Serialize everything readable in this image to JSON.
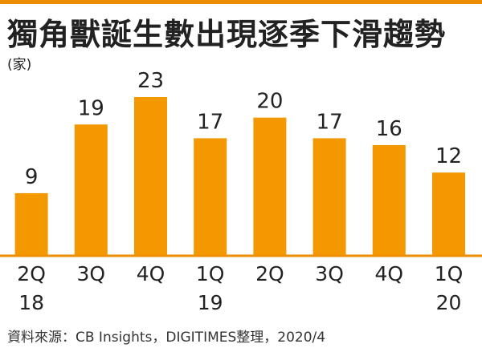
{
  "title": "獨角獸誕生數出現逐季下滑趨勢",
  "unit": "(家)",
  "source": "資料來源：CB Insights，DIGITIMES整理，2020/4",
  "colors": {
    "accent": "#ee8c00",
    "bar": "#f39800",
    "text": "#222222"
  },
  "chart_data": {
    "type": "bar",
    "categories": [
      {
        "q": "2Q",
        "year": "18"
      },
      {
        "q": "3Q",
        "year": ""
      },
      {
        "q": "4Q",
        "year": ""
      },
      {
        "q": "1Q",
        "year": "19"
      },
      {
        "q": "2Q",
        "year": ""
      },
      {
        "q": "3Q",
        "year": ""
      },
      {
        "q": "4Q",
        "year": ""
      },
      {
        "q": "1Q",
        "year": "20"
      }
    ],
    "values": [
      9,
      19,
      23,
      17,
      20,
      17,
      16,
      12
    ],
    "ylim": [
      0,
      23
    ],
    "grid": false,
    "legend": "none"
  }
}
